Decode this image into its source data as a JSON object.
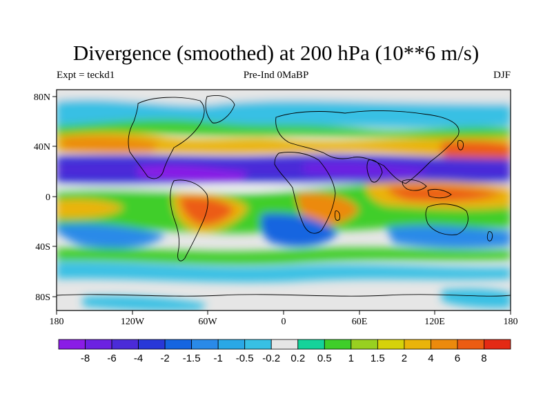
{
  "title": "Divergence (smoothed) at 200 hPa (10**6 m/s)",
  "left_string": "Expt = teckd1",
  "center_string": "Pre-Ind 0MaBP",
  "right_string": "DJF",
  "lon_ticks": [
    "180",
    "120W",
    "60W",
    "0",
    "60E",
    "120E",
    "180"
  ],
  "lat_ticks": [
    "80N",
    "40N",
    "0",
    "40S",
    "80S"
  ],
  "colorbar": {
    "labels": [
      "-8",
      "-6",
      "-4",
      "-2",
      "-1.5",
      "-1",
      "-0.5",
      "-0.2",
      "0.2",
      "0.5",
      "1",
      "1.5",
      "2",
      "4",
      "6",
      "8"
    ],
    "colors": [
      "#8a1ce6",
      "#6c22e2",
      "#4b2bd8",
      "#2838d8",
      "#1565e0",
      "#2a8ae8",
      "#2aa8e6",
      "#38c0e4",
      "#e6e6e6",
      "#14d39a",
      "#3fce2a",
      "#98d020",
      "#d6d20a",
      "#eab40a",
      "#ec8a0c",
      "#ec5c12",
      "#e42a14"
    ]
  },
  "chart_data": {
    "type": "contour-map",
    "variable": "Divergence (smoothed) at 200 hPa",
    "units": "10**6 m/s",
    "season": "DJF",
    "experiment": "teckd1",
    "period": "Pre-Ind 0MaBP",
    "lon_range": [
      -180,
      180
    ],
    "lat_range": [
      -90,
      90
    ],
    "contour_levels": [
      -8,
      -6,
      -4,
      -2,
      -1.5,
      -1,
      -0.5,
      -0.2,
      0.2,
      0.5,
      1,
      1.5,
      2,
      4,
      6,
      8
    ]
  }
}
